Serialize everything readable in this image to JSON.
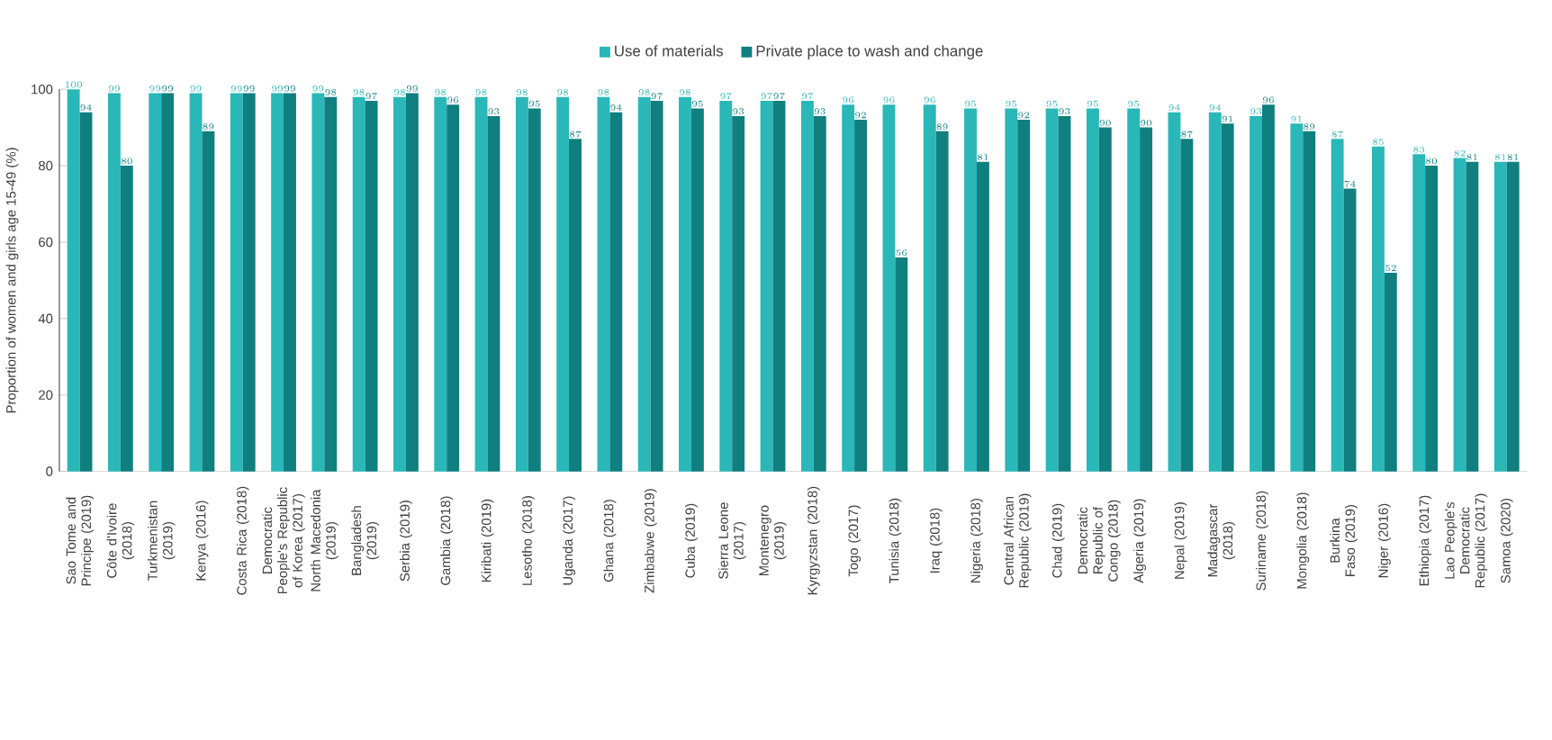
{
  "chart_data": {
    "type": "bar",
    "ylabel": "Proportion of women and girls age 15-49 (%)",
    "categories": [
      "Sao Tome and Principe (2019)",
      "Côte d'Ivoire (2018)",
      "Turkmenistan (2019)",
      "Kenya (2016)",
      "Costa Rica (2018)",
      "Democratic People's Republic of Korea (2017)",
      "North Macedonia (2019)",
      "Bangladesh (2019)",
      "Serbia (2019)",
      "Gambia (2018)",
      "Kiribati (2019)",
      "Lesotho (2018)",
      "Uganda (2017)",
      "Ghana (2018)",
      "Zimbabwe (2019)",
      "Cuba (2019)",
      "Sierra Leone (2017)",
      "Montenegro (2019)",
      "Kyrgyzstan (2018)",
      "Togo (2017)",
      "Tunisia (2018)",
      "Iraq (2018)",
      "Nigeria (2018)",
      "Central African Republic (2019)",
      "Chad (2019)",
      "Democratic Republic of Congo (2018)",
      "Algeria (2019)",
      "Nepal (2019)",
      "Madagascar (2018)",
      "Suriname (2018)",
      "Mongolia (2018)",
      "Burkina Faso (2019)",
      "Niger (2016)",
      "Ethiopia (2017)",
      "Lao People's Democratic Republic (2017)",
      "Samoa (2020)"
    ],
    "series": [
      {
        "name": "Use of materials",
        "color": "#2ab7b8",
        "values": [
          100,
          99,
          99,
          99,
          99,
          99,
          99,
          98,
          98,
          98,
          98,
          98,
          98,
          98,
          98,
          98,
          97,
          97,
          97,
          96,
          96,
          96,
          95,
          95,
          95,
          95,
          95,
          94,
          94,
          93,
          91,
          87,
          85,
          83,
          82,
          81
        ]
      },
      {
        "name": "Private place to wash and change",
        "color": "#0f7f80",
        "values": [
          94,
          80,
          99,
          89,
          99,
          99,
          98,
          97,
          99,
          96,
          93,
          95,
          87,
          94,
          97,
          95,
          93,
          97,
          93,
          92,
          56,
          89,
          81,
          92,
          93,
          90,
          90,
          87,
          91,
          96,
          89,
          74,
          52,
          80,
          81,
          81
        ]
      }
    ],
    "ylim": [
      0,
      100
    ],
    "yticks": [
      0,
      20,
      40,
      60,
      80,
      100
    ],
    "data_labels": true,
    "grid": false,
    "legend": "top"
  }
}
